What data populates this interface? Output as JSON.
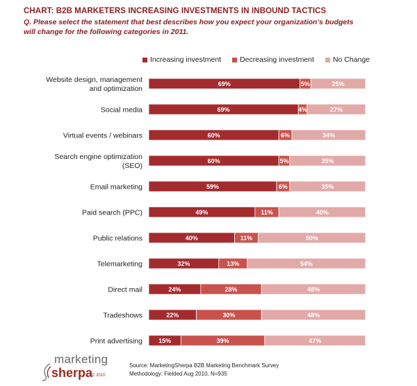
{
  "title": "CHART: B2B MARKETERS INCREASING INVESTMENTS IN INBOUND TACTICS",
  "question": "Q. Please select the statement that best describes how you expect your organization's budgets will change for the following categories in 2011.",
  "colors": {
    "increasing": "#a32b2e",
    "decreasing": "#c8524c",
    "nochange": "#e2a9a9",
    "title": "#8a1f24"
  },
  "chart_data": {
    "type": "bar",
    "orientation": "horizontal",
    "stacked": true,
    "percent": true,
    "legend_position": "top",
    "categories": [
      [
        "Website design, management",
        "and optimization"
      ],
      [
        "Social media"
      ],
      [
        "Virtual events / webinars"
      ],
      [
        "Search engine optimization",
        "(SEO)"
      ],
      [
        "Email marketing"
      ],
      [
        "Paid search (PPC)"
      ],
      [
        "Public relations"
      ],
      [
        "Telemarketing"
      ],
      [
        "Direct mail"
      ],
      [
        "Tradeshows"
      ],
      [
        "Print advertising"
      ]
    ],
    "series": [
      {
        "name": "Increasing investment",
        "color": "#a32b2e",
        "values": [
          69,
          69,
          60,
          60,
          59,
          49,
          40,
          32,
          24,
          22,
          15
        ]
      },
      {
        "name": "Decreasing investment",
        "color": "#c8524c",
        "values": [
          5,
          4,
          6,
          5,
          6,
          11,
          11,
          13,
          28,
          30,
          39
        ]
      },
      {
        "name": "No Change",
        "color": "#e2a9a9",
        "values": [
          25,
          27,
          34,
          35,
          35,
          40,
          50,
          54,
          48,
          48,
          47
        ]
      }
    ]
  },
  "logo": {
    "line1": "marketing",
    "line2": "sherpa",
    "year": "© 2010"
  },
  "source": {
    "line1": "Source: MarketingSherpa B2B Marketing Benchmark Survey",
    "line2": "Methodology: Fielded Aug 2010, N=935"
  }
}
